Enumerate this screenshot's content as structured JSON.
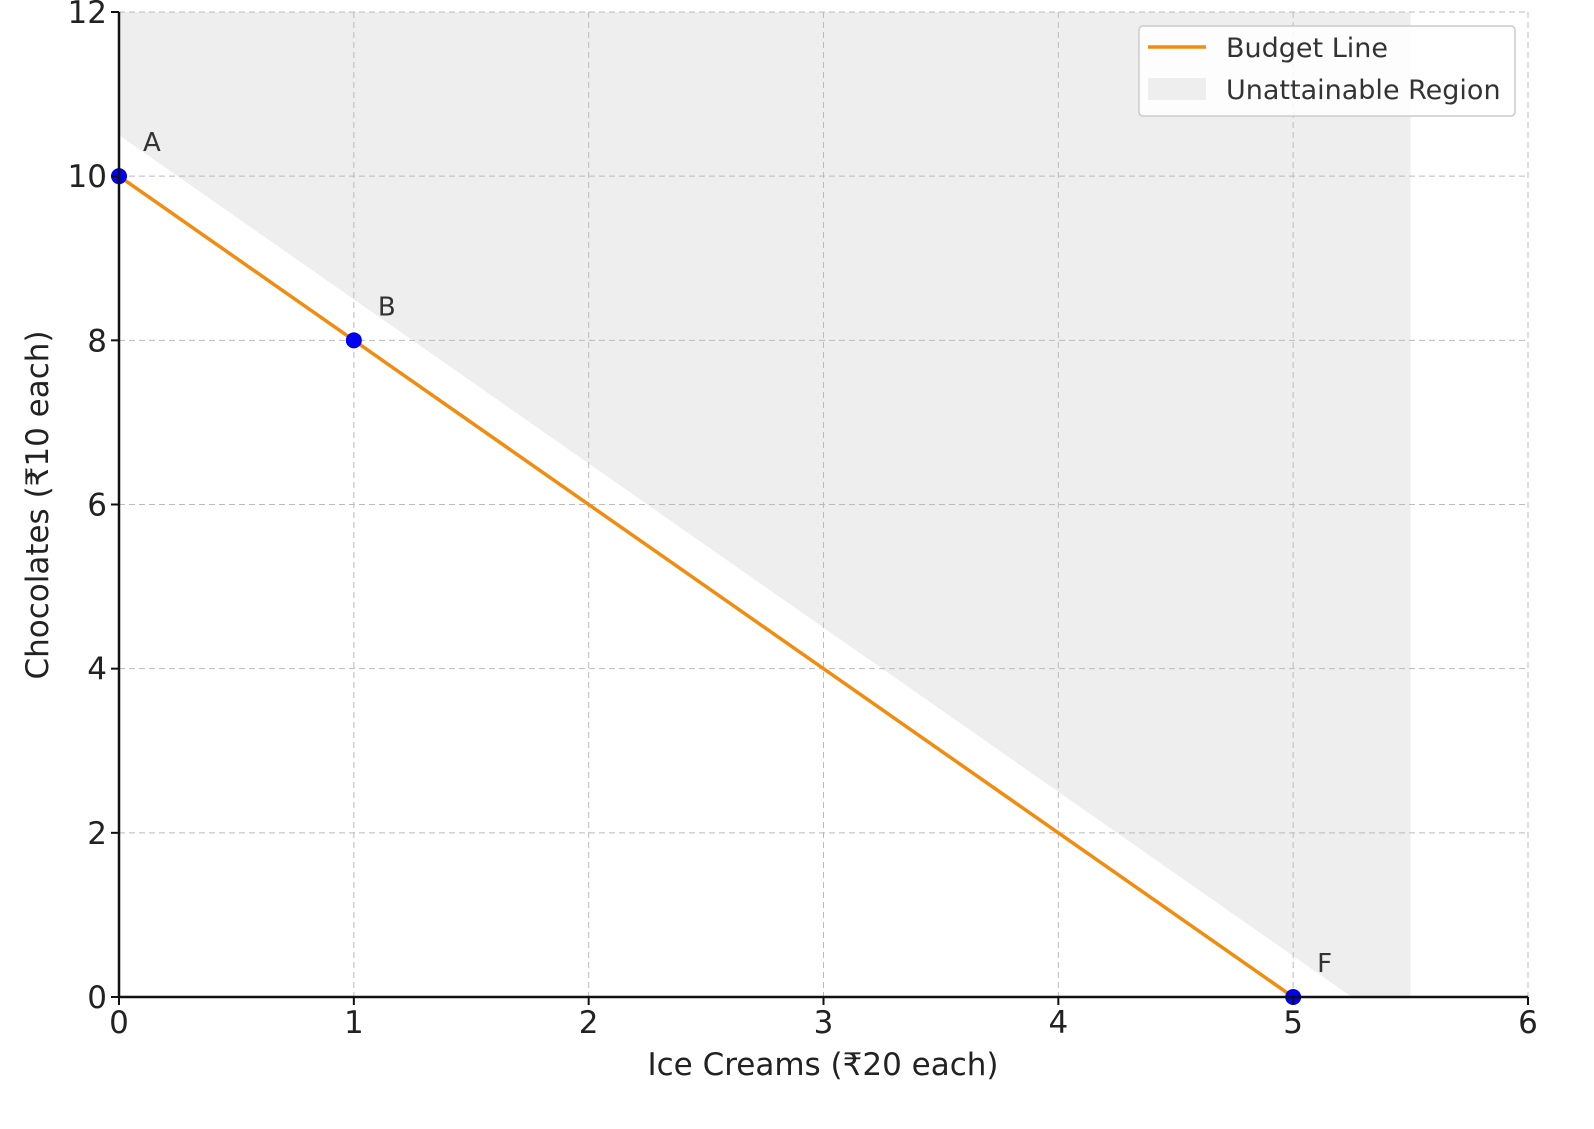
{
  "chart_data": {
    "type": "line",
    "title": "",
    "xlabel": "Ice Creams (₹20 each)",
    "ylabel": "Chocolates (₹10 each)",
    "xlim": [
      0,
      6
    ],
    "ylim": [
      0,
      12
    ],
    "xticks": [
      "0",
      "1",
      "2",
      "3",
      "4",
      "5",
      "6"
    ],
    "yticks": [
      "0",
      "2",
      "4",
      "6",
      "8",
      "10",
      "12"
    ],
    "grid": true,
    "legend_placement": "top-right",
    "series": [
      {
        "name": "Budget Line",
        "color": "#f28c0f",
        "x": [
          0,
          5
        ],
        "y": [
          10,
          0
        ]
      }
    ],
    "region": {
      "name": "Unattainable Region",
      "color": "#eeeeee",
      "x_range": [
        0,
        5.5
      ],
      "lower_boundary": {
        "x": [
          0,
          5.25
        ],
        "y": [
          10.5,
          0
        ]
      },
      "upper": 12
    },
    "points": [
      {
        "label": "A",
        "x": 0,
        "y": 10
      },
      {
        "label": "B",
        "x": 1,
        "y": 8
      },
      {
        "label": "F",
        "x": 5,
        "y": 0
      }
    ],
    "point_color": "#0000ee"
  }
}
